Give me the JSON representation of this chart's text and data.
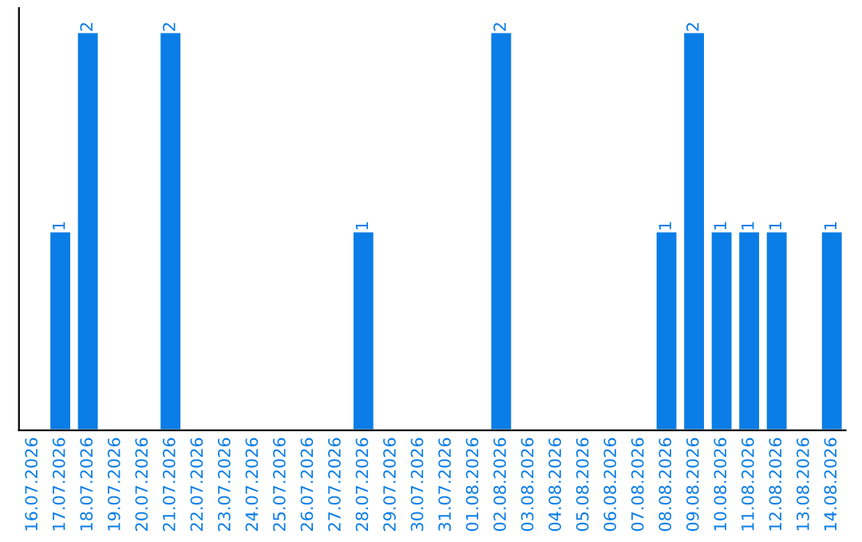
{
  "chart_data": {
    "type": "bar",
    "color": "#0a7de6",
    "categories": [
      "16.07.2026",
      "17.07.2026",
      "18.07.2026",
      "19.07.2026",
      "20.07.2026",
      "21.07.2026",
      "22.07.2026",
      "23.07.2026",
      "24.07.2026",
      "25.07.2026",
      "26.07.2026",
      "27.07.2026",
      "28.07.2026",
      "29.07.2026",
      "30.07.2026",
      "31.07.2026",
      "01.08.2026",
      "02.08.2026",
      "03.08.2026",
      "04.08.2026",
      "05.08.2026",
      "06.08.2026",
      "07.08.2026",
      "08.08.2026",
      "09.08.2026",
      "10.08.2026",
      "11.08.2026",
      "12.08.2026",
      "13.08.2026",
      "14.08.2026"
    ],
    "values": [
      null,
      1,
      2,
      null,
      null,
      2,
      null,
      null,
      null,
      null,
      null,
      null,
      1,
      null,
      null,
      null,
      null,
      2,
      null,
      null,
      null,
      null,
      null,
      1,
      2,
      1,
      1,
      1,
      null,
      1
    ],
    "value_labels": [
      null,
      "1",
      "2",
      null,
      null,
      "2",
      null,
      null,
      null,
      null,
      null,
      null,
      "1",
      null,
      null,
      null,
      null,
      "2",
      null,
      null,
      null,
      null,
      null,
      "1",
      "2",
      "1",
      "1",
      "1",
      null,
      "1"
    ],
    "grid": false,
    "legend": false
  }
}
